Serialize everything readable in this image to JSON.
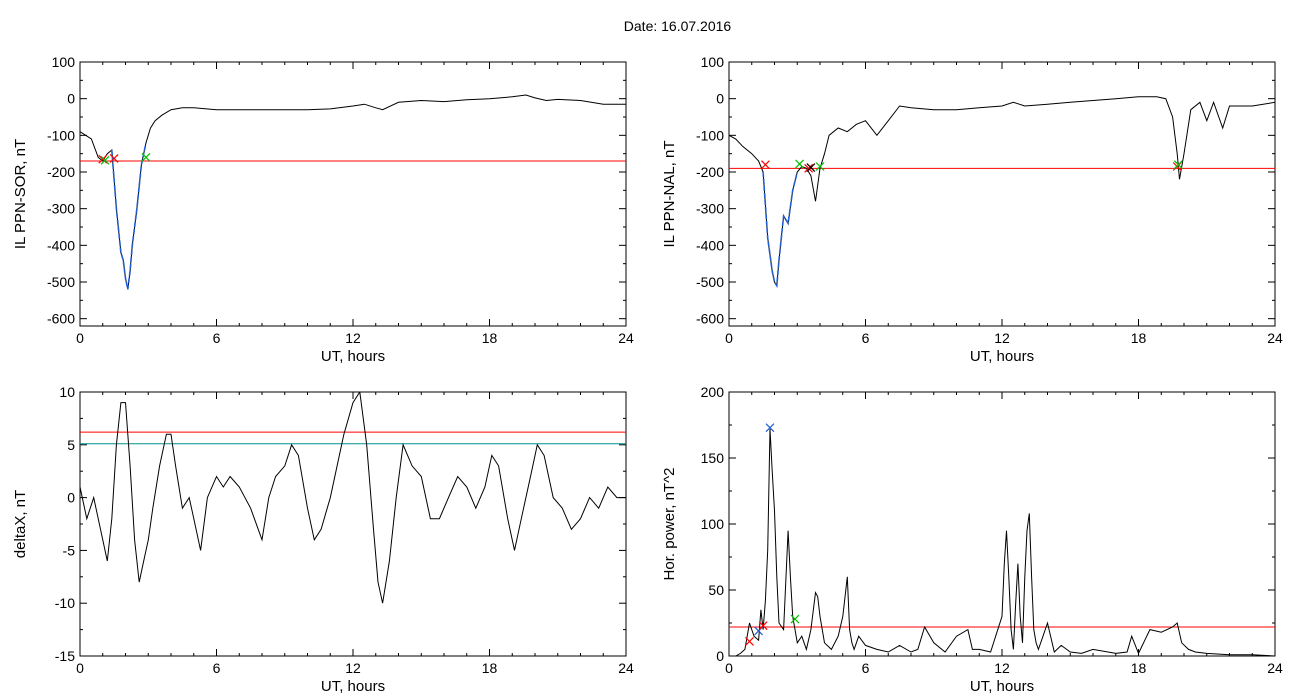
{
  "figure": {
    "title": "Date:  16.07.2016"
  },
  "chart_data": [
    {
      "type": "line",
      "xlabel": "UT, hours",
      "ylabel": "IL PPN-SOR, nT",
      "xlim": [
        0,
        24
      ],
      "ylim": [
        -620,
        100
      ],
      "xticks": [
        0,
        6,
        12,
        18,
        24
      ],
      "yticks": [
        100,
        0,
        -100,
        -200,
        -300,
        -400,
        -500,
        -600
      ],
      "grid": false,
      "series": [
        {
          "color": "#000000",
          "x": [
            0,
            0.25,
            0.5,
            0.8,
            1.0,
            1.2,
            1.4,
            1.6,
            1.8,
            1.9,
            2.0,
            2.1,
            2.2,
            2.3,
            2.5,
            2.7,
            2.9,
            3.1,
            3.3,
            3.6,
            4.0,
            4.5,
            5.0,
            6,
            7,
            8,
            9,
            10,
            11,
            12,
            12.5,
            13,
            13.3,
            14,
            15,
            16,
            17,
            18,
            19,
            19.6,
            20,
            20.5,
            21,
            22,
            23,
            24
          ],
          "y": [
            -90,
            -100,
            -110,
            -160,
            -170,
            -150,
            -140,
            -300,
            -420,
            -440,
            -490,
            -520,
            -470,
            -400,
            -300,
            -180,
            -120,
            -80,
            -60,
            -45,
            -30,
            -25,
            -25,
            -30,
            -30,
            -30,
            -30,
            -30,
            -28,
            -20,
            -15,
            -25,
            -30,
            -10,
            -5,
            -8,
            -3,
            0,
            5,
            10,
            2,
            -5,
            -2,
            -5,
            -15,
            -15
          ]
        },
        {
          "color": "#1f5fd6",
          "x": [
            1.4,
            1.6,
            1.8,
            1.9,
            2.0,
            2.1,
            2.2,
            2.3,
            2.5,
            2.7,
            2.9
          ],
          "y": [
            -140,
            -300,
            -420,
            -440,
            -490,
            -520,
            -470,
            -400,
            -300,
            -180,
            -120
          ]
        }
      ],
      "threshold": {
        "y": -170,
        "color": "#ff0000"
      },
      "markers": [
        {
          "x": 1.0,
          "y": -165,
          "color": "#ff0000"
        },
        {
          "x": 1.1,
          "y": -168,
          "color": "#00c000"
        },
        {
          "x": 1.5,
          "y": -163,
          "color": "#ff0000"
        },
        {
          "x": 2.9,
          "y": -160,
          "color": "#00c000"
        }
      ]
    },
    {
      "type": "line",
      "xlabel": "UT, hours",
      "ylabel": "IL PPN-NAL, nT",
      "xlim": [
        0,
        24
      ],
      "ylim": [
        -620,
        100
      ],
      "xticks": [
        0,
        6,
        12,
        18,
        24
      ],
      "yticks": [
        100,
        0,
        -100,
        -200,
        -300,
        -400,
        -500,
        -600
      ],
      "grid": false,
      "series": [
        {
          "color": "#000000",
          "x": [
            0,
            0.3,
            0.6,
            1.0,
            1.3,
            1.5,
            1.7,
            1.9,
            2.0,
            2.1,
            2.2,
            2.4,
            2.6,
            2.8,
            3.0,
            3.2,
            3.4,
            3.6,
            3.8,
            4.0,
            4.2,
            4.4,
            4.8,
            5.2,
            5.6,
            6.0,
            6.5,
            7.0,
            7.5,
            8,
            9,
            10,
            11,
            12,
            12.5,
            13,
            14,
            15,
            16,
            17,
            18,
            18.8,
            19.2,
            19.5,
            19.7,
            19.8,
            20.0,
            20.3,
            20.7,
            21,
            21.3,
            21.7,
            22,
            23,
            24
          ],
          "y": [
            -100,
            -110,
            -130,
            -150,
            -170,
            -200,
            -380,
            -470,
            -500,
            -510,
            -440,
            -320,
            -340,
            -250,
            -200,
            -185,
            -190,
            -210,
            -280,
            -190,
            -150,
            -100,
            -80,
            -90,
            -70,
            -60,
            -100,
            -60,
            -20,
            -25,
            -30,
            -30,
            -25,
            -20,
            -10,
            -20,
            -15,
            -10,
            -5,
            0,
            5,
            5,
            0,
            -50,
            -150,
            -220,
            -150,
            -30,
            -10,
            -60,
            -10,
            -80,
            -20,
            -20,
            -10
          ]
        },
        {
          "color": "#1f5fd6",
          "x": [
            1.5,
            1.7,
            1.9,
            2.0,
            2.1,
            2.2,
            2.4,
            2.6,
            2.8,
            3.0
          ],
          "y": [
            -200,
            -380,
            -470,
            -500,
            -510,
            -440,
            -320,
            -340,
            -250,
            -200
          ]
        }
      ],
      "threshold": {
        "y": -190,
        "color": "#ff0000"
      },
      "markers": [
        {
          "x": 1.6,
          "y": -180,
          "color": "#ff0000"
        },
        {
          "x": 3.1,
          "y": -178,
          "color": "#00c000"
        },
        {
          "x": 3.5,
          "y": -190,
          "color": "#ff0000"
        },
        {
          "x": 3.6,
          "y": -188,
          "color": "#000000"
        },
        {
          "x": 4.0,
          "y": -185,
          "color": "#00c000"
        },
        {
          "x": 19.7,
          "y": -185,
          "color": "#ff0000"
        },
        {
          "x": 19.75,
          "y": -180,
          "color": "#00c000"
        }
      ]
    },
    {
      "type": "line",
      "xlabel": "UT, hours",
      "ylabel": "deltaX, nT",
      "xlim": [
        0,
        24
      ],
      "ylim": [
        -15,
        10
      ],
      "xticks": [
        0,
        6,
        12,
        18,
        24
      ],
      "yticks": [
        10,
        5,
        0,
        -5,
        -10,
        -15
      ],
      "grid": false,
      "series": [
        {
          "color": "#000000",
          "x": [
            0,
            0.3,
            0.6,
            0.9,
            1.2,
            1.4,
            1.6,
            1.8,
            2.0,
            2.2,
            2.4,
            2.6,
            2.8,
            3.0,
            3.2,
            3.5,
            3.8,
            4.0,
            4.2,
            4.5,
            4.8,
            5.0,
            5.3,
            5.6,
            6.0,
            6.3,
            6.6,
            7.0,
            7.5,
            8.0,
            8.3,
            8.6,
            9.0,
            9.3,
            9.6,
            10.0,
            10.3,
            10.6,
            11.0,
            11.3,
            11.6,
            12.0,
            12.3,
            12.6,
            12.9,
            13.1,
            13.3,
            13.6,
            13.9,
            14.2,
            14.6,
            15.0,
            15.4,
            15.8,
            16.2,
            16.6,
            17.0,
            17.4,
            17.8,
            18.1,
            18.4,
            18.8,
            19.1,
            19.4,
            19.8,
            20.1,
            20.4,
            20.8,
            21.2,
            21.6,
            22.0,
            22.4,
            22.8,
            23.2,
            23.6,
            24
          ],
          "y": [
            1,
            -2,
            0,
            -3,
            -6,
            -2,
            5,
            9,
            9,
            3,
            -4,
            -8,
            -6,
            -4,
            -1,
            3,
            6,
            6,
            3,
            -1,
            0,
            -2,
            -5,
            0,
            2,
            1,
            2,
            1,
            -1,
            -4,
            0,
            2,
            3,
            5,
            4,
            -1,
            -4,
            -3,
            0,
            3,
            6,
            9,
            10,
            5,
            -3,
            -8,
            -10,
            -6,
            0,
            5,
            3,
            2,
            -2,
            -2,
            0,
            2,
            1,
            -1,
            1,
            4,
            3,
            -2,
            -5,
            -2,
            2,
            5,
            4,
            0,
            -1,
            -3,
            -2,
            0,
            -1,
            1,
            0,
            0
          ]
        }
      ],
      "hlines": [
        {
          "y": 6.2,
          "color": "#ff0000"
        },
        {
          "y": 5.1,
          "color": "#008f8f"
        }
      ]
    },
    {
      "type": "line",
      "xlabel": "UT, hours",
      "ylabel": "Hor. power, nT^2",
      "xlim": [
        0,
        24
      ],
      "ylim": [
        0,
        200
      ],
      "xticks": [
        0,
        6,
        12,
        18,
        24
      ],
      "yticks": [
        200,
        150,
        100,
        50,
        0
      ],
      "grid": false,
      "series": [
        {
          "color": "#000000",
          "x": [
            0,
            0.3,
            0.5,
            0.7,
            0.9,
            1.1,
            1.3,
            1.4,
            1.5,
            1.6,
            1.7,
            1.8,
            1.9,
            2.0,
            2.1,
            2.2,
            2.4,
            2.6,
            2.7,
            2.8,
            2.9,
            3.0,
            3.2,
            3.4,
            3.6,
            3.8,
            3.9,
            4.0,
            4.2,
            4.5,
            4.8,
            5.0,
            5.2,
            5.3,
            5.4,
            5.5,
            5.7,
            6.0,
            6.5,
            7.0,
            7.5,
            8.0,
            8.3,
            8.6,
            9.0,
            9.5,
            10,
            10.5,
            10.7,
            11,
            11.5,
            12,
            12.1,
            12.2,
            12.3,
            12.4,
            12.5,
            12.6,
            12.7,
            12.8,
            12.9,
            13.0,
            13.1,
            13.2,
            13.3,
            13.4,
            13.5,
            13.6,
            13.8,
            14,
            14.3,
            14.6,
            15,
            15.5,
            16,
            17,
            17.5,
            17.7,
            18,
            18.5,
            19,
            19.5,
            19.7,
            19.9,
            20.2,
            20.5,
            21,
            22,
            23,
            24
          ],
          "y": [
            0,
            0,
            2,
            5,
            25,
            15,
            12,
            35,
            20,
            42,
            80,
            172,
            140,
            110,
            60,
            25,
            20,
            95,
            60,
            30,
            20,
            10,
            15,
            5,
            20,
            48,
            45,
            30,
            10,
            5,
            15,
            30,
            60,
            20,
            10,
            5,
            15,
            8,
            5,
            3,
            8,
            3,
            5,
            22,
            10,
            3,
            15,
            20,
            5,
            5,
            3,
            30,
            70,
            95,
            60,
            20,
            5,
            40,
            70,
            30,
            10,
            60,
            95,
            108,
            60,
            20,
            10,
            5,
            15,
            25,
            3,
            8,
            3,
            2,
            5,
            2,
            3,
            15,
            2,
            20,
            18,
            22,
            25,
            10,
            5,
            3,
            2,
            1,
            1,
            0
          ]
        }
      ],
      "threshold": {
        "y": 22,
        "color": "#ff0000"
      },
      "markers": [
        {
          "x": 0.9,
          "y": 11,
          "color": "#ff0000"
        },
        {
          "x": 1.3,
          "y": 19,
          "color": "#1f5fd6"
        },
        {
          "x": 1.5,
          "y": 23,
          "color": "#ff0000"
        },
        {
          "x": 1.8,
          "y": 173,
          "color": "#1f5fd6"
        },
        {
          "x": 2.9,
          "y": 28,
          "color": "#00c000"
        }
      ]
    }
  ]
}
